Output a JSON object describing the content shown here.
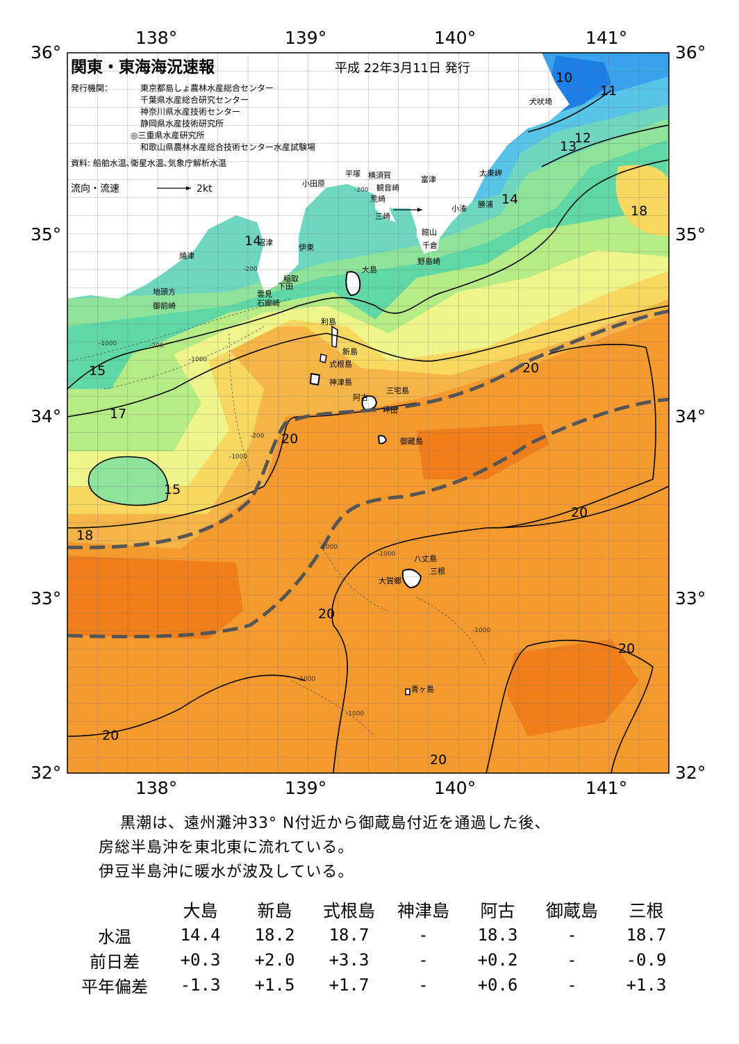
{
  "header": {
    "title": "関東・東海海況速報",
    "date": "平成 22年3月11日 発行",
    "publisher_label": "発行機関：",
    "publishers": [
      "東京都島しょ農林水産総合センター",
      "千葉県水産総合研究センター",
      "神奈川県水産技術センター",
      "静岡県水産技術研究所",
      "◎三重県水産研究所",
      "和歌山県農林水産総合技術センター水産試験場"
    ],
    "source": "資料: 船舶水温､衛星水温､気象庁解析水温",
    "current_legend": "流向・流速",
    "current_speed": "2kt"
  },
  "axes": {
    "lon_labels": [
      "138°",
      "139°",
      "140°",
      "141°"
    ],
    "lat_labels": [
      "36°",
      "35°",
      "34°",
      "33°",
      "32°"
    ],
    "lon_range": [
      137.5,
      141.5
    ],
    "lat_range": [
      32,
      36
    ]
  },
  "isotherm_labels": [
    "10",
    "11",
    "12",
    "13",
    "14",
    "14",
    "15",
    "15",
    "17",
    "18",
    "18",
    "20",
    "20",
    "20",
    "20",
    "20",
    "20",
    "20"
  ],
  "depth_labels": [
    "-200",
    "-200",
    "-200",
    "-200",
    "-1000",
    "-1000",
    "-1000",
    "-1000",
    "-1000",
    "-1000",
    "-1000",
    "-1000"
  ],
  "places": {
    "犬吠埼": "犬吠埼",
    "太東岬": "太東岬",
    "勝浦": "勝浦",
    "小湊": "小湊",
    "富津": "富津",
    "横須賀": "横須賀",
    "観音崎": "観音崎",
    "平塚": "平塚",
    "荒崎": "荒崎",
    "三崎": "三崎",
    "小田原": "小田原",
    "館山": "館山",
    "千倉": "千倉",
    "野島崎": "野島崎",
    "沼津": "沼津",
    "伊東": "伊東",
    "焼津": "焼津",
    "稲取": "稲取",
    "下田": "下田",
    "雲見": "雲見",
    "石廊崎": "石廊崎",
    "地頭方": "地頭方",
    "御前崎": "御前崎",
    "大島": "大島",
    "利島": "利島",
    "新島": "新島",
    "式根島": "式根島",
    "神津島": "神津島",
    "三宅島": "三宅島",
    "阿古": "阿古",
    "坪田": "坪田",
    "御蔵島": "御蔵島",
    "八丈島": "八丈島",
    "三根": "三根",
    "大賀郷": "大賀郷",
    "青ヶ島": "青ヶ島"
  },
  "colors": {
    "t10": "#1e7fe6",
    "t11": "#3aa3ee",
    "t12": "#58c4e8",
    "t13": "#6fd6c0",
    "t14": "#8fe29a",
    "t15": "#5fd8a6",
    "t16": "#b6ec86",
    "t17": "#eef58a",
    "t18": "#f8d860",
    "t19": "#f6b548",
    "t20": "#f49a2e",
    "t21": "#f07e1a",
    "kuroshio": "#555555",
    "land": "#ffffff"
  },
  "summary": [
    "黒潮は、遠州灘沖33° N付近から御蔵島付近を通過した後、",
    "房総半島沖を東北東に流れている。",
    "伊豆半島沖に暖水が波及している。"
  ],
  "table": {
    "columns": [
      "大島",
      "新島",
      "式根島",
      "神津島",
      "阿古",
      "御蔵島",
      "三根"
    ],
    "rows": [
      {
        "label": "水温",
        "values": [
          "14.4",
          "18.2",
          "18.7",
          "-",
          "18.3",
          "-",
          "18.7"
        ]
      },
      {
        "label": "前日差",
        "values": [
          "+0.3",
          "+2.0",
          "+3.3",
          "-",
          "+0.2",
          "-",
          "-0.9"
        ]
      },
      {
        "label": "平年偏差",
        "values": [
          "-1.3",
          "+1.5",
          "+1.7",
          "-",
          "+0.6",
          "-",
          "+1.3"
        ]
      }
    ]
  }
}
